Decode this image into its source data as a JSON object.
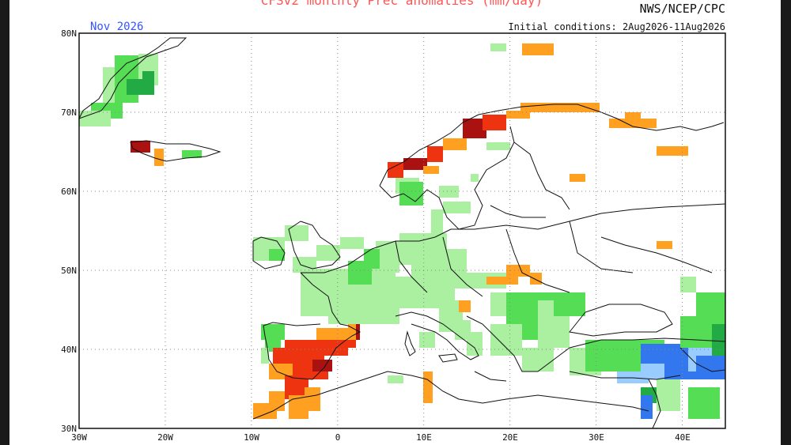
{
  "map": {
    "title": "CFSv2 monthly Prec anomalies (mm/day)",
    "org": "NWS/NCEP/CPC",
    "valid_month": "Nov 2026",
    "initial_conditions": "Initial conditions: 2Aug2026-11Aug2026",
    "lat_labels": [
      "80N",
      "70N",
      "60N",
      "50N",
      "40N",
      "30N"
    ],
    "lon_labels": [
      "30W",
      "20W",
      "10W",
      "0",
      "10E",
      "20E",
      "30E",
      "40E"
    ],
    "extent": {
      "lon_min": -30,
      "lon_max": 45,
      "lat_min": 30,
      "lat_max": 80
    },
    "grid": "dotted",
    "colors": {
      "light_green": "#aaf0a0",
      "green": "#55dd55",
      "dark_green": "#22aa44",
      "orange": "#ffa020",
      "red": "#ee3311",
      "dark_red": "#aa1111",
      "light_blue": "#99ccff",
      "blue": "#3377ee",
      "border": "#111111"
    }
  }
}
